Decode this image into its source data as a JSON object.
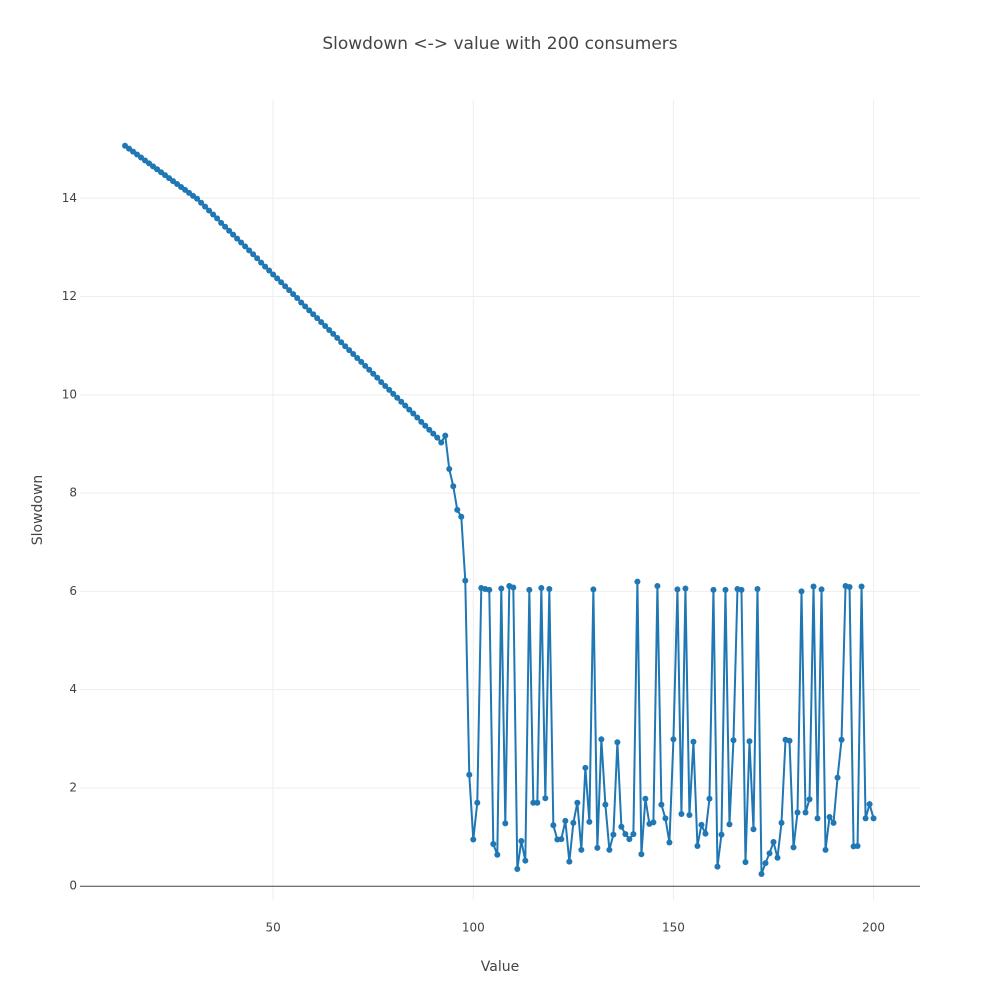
{
  "chart_data": {
    "type": "line",
    "title": "Slowdown <-> value with 200 consumers",
    "x_label": "Value",
    "y_label": "Slowdown",
    "x": [
      13,
      14,
      15,
      16,
      17,
      18,
      19,
      20,
      21,
      22,
      23,
      24,
      25,
      26,
      27,
      28,
      29,
      30,
      31,
      32,
      33,
      34,
      35,
      36,
      37,
      38,
      39,
      40,
      41,
      42,
      43,
      44,
      45,
      46,
      47,
      48,
      49,
      50,
      51,
      52,
      53,
      54,
      55,
      56,
      57,
      58,
      59,
      60,
      61,
      62,
      63,
      64,
      65,
      66,
      67,
      68,
      69,
      70,
      71,
      72,
      73,
      74,
      75,
      76,
      77,
      78,
      79,
      80,
      81,
      82,
      83,
      84,
      85,
      86,
      87,
      88,
      89,
      90,
      91,
      92,
      93,
      94,
      95,
      96,
      97,
      98,
      99,
      100,
      101,
      102,
      103,
      104,
      105,
      106,
      107,
      108,
      109,
      110,
      111,
      112,
      113,
      114,
      115,
      116,
      117,
      118,
      119,
      120,
      121,
      122,
      123,
      124,
      125,
      126,
      127,
      128,
      129,
      130,
      131,
      132,
      133,
      134,
      135,
      136,
      137,
      138,
      139,
      140,
      141,
      142,
      143,
      144,
      145,
      146,
      147,
      148,
      149,
      150,
      151,
      152,
      153,
      154,
      155,
      156,
      157,
      158,
      159,
      160,
      161,
      162,
      163,
      164,
      165,
      166,
      167,
      168,
      169,
      170,
      171,
      172,
      173,
      174,
      175,
      176,
      177,
      178,
      179,
      180,
      181,
      182,
      183,
      184,
      185,
      186,
      187,
      188,
      189,
      190,
      191,
      192,
      193,
      194,
      195,
      196,
      197,
      198,
      199,
      200
    ],
    "values": [
      15.07,
      15.01,
      14.95,
      14.89,
      14.83,
      14.77,
      14.71,
      14.65,
      14.59,
      14.53,
      14.47,
      14.41,
      14.35,
      14.29,
      14.23,
      14.17,
      14.11,
      14.05,
      13.99,
      13.91,
      13.83,
      13.75,
      13.67,
      13.59,
      13.5,
      13.42,
      13.34,
      13.26,
      13.18,
      13.1,
      13.02,
      12.94,
      12.86,
      12.78,
      12.69,
      12.61,
      12.53,
      12.45,
      12.37,
      12.29,
      12.21,
      12.13,
      12.05,
      11.97,
      11.88,
      11.8,
      11.72,
      11.64,
      11.56,
      11.48,
      11.4,
      11.32,
      11.24,
      11.16,
      11.07,
      10.99,
      10.91,
      10.83,
      10.75,
      10.67,
      10.59,
      10.51,
      10.43,
      10.35,
      10.26,
      10.18,
      10.1,
      10.02,
      9.94,
      9.86,
      9.78,
      9.7,
      9.62,
      9.54,
      9.45,
      9.37,
      9.29,
      9.21,
      9.13,
      9.03,
      9.17,
      8.49,
      8.14,
      7.66,
      7.52,
      6.22,
      2.27,
      0.95,
      1.7,
      6.07,
      6.05,
      6.03,
      0.86,
      0.64,
      6.06,
      1.28,
      6.11,
      6.08,
      0.35,
      0.92,
      0.52,
      6.03,
      1.7,
      1.7,
      6.07,
      1.79,
      6.05,
      1.24,
      0.95,
      0.96,
      1.33,
      0.5,
      1.29,
      1.7,
      0.74,
      2.41,
      1.31,
      6.04,
      0.78,
      2.99,
      1.66,
      0.74,
      1.05,
      2.93,
      1.21,
      1.06,
      0.96,
      1.06,
      6.2,
      0.65,
      1.78,
      1.27,
      1.3,
      6.11,
      1.66,
      1.38,
      0.89,
      2.99,
      6.04,
      1.47,
      6.06,
      1.45,
      2.94,
      0.82,
      1.25,
      1.07,
      1.78,
      6.03,
      0.4,
      1.05,
      6.03,
      1.26,
      2.97,
      6.05,
      6.03,
      0.49,
      2.95,
      1.16,
      6.05,
      0.25,
      0.47,
      0.67,
      0.9,
      0.58,
      1.29,
      2.98,
      2.96,
      0.79,
      1.5,
      6.0,
      1.5,
      1.77,
      6.1,
      1.38,
      6.04,
      0.74,
      1.41,
      1.29,
      2.21,
      2.98,
      6.11,
      6.09,
      0.81,
      0.82,
      6.1,
      1.38,
      1.67,
      1.38
    ],
    "color": "#1f77b4",
    "xlim": [
      1.75,
      211.6
    ],
    "ylim": [
      -0.28,
      16
    ],
    "xticks": [
      50,
      100,
      150,
      200
    ],
    "yticks": [
      0,
      2,
      4,
      6,
      8,
      10,
      12,
      14
    ],
    "grid": true
  }
}
